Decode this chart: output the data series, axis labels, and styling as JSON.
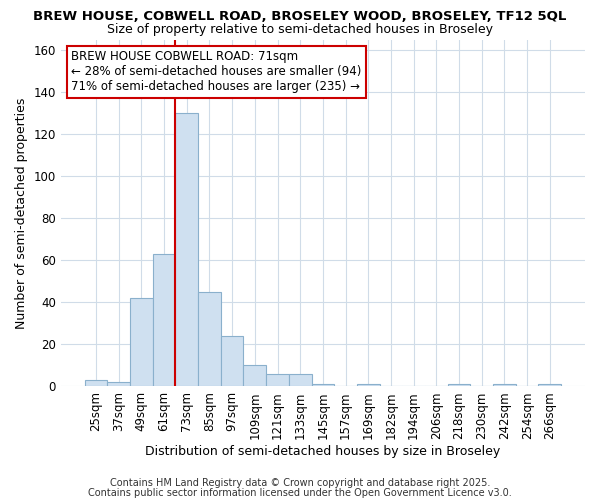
{
  "title_line1": "BREW HOUSE, COBWELL ROAD, BROSELEY WOOD, BROSELEY, TF12 5QL",
  "title_line2": "Size of property relative to semi-detached houses in Broseley",
  "xlabel": "Distribution of semi-detached houses by size in Broseley",
  "ylabel": "Number of semi-detached properties",
  "annotation_line1": "BREW HOUSE COBWELL ROAD: 71sqm",
  "annotation_line2": "← 28% of semi-detached houses are smaller (94)",
  "annotation_line3": "71% of semi-detached houses are larger (235) →",
  "footer_line1": "Contains HM Land Registry data © Crown copyright and database right 2025.",
  "footer_line2": "Contains public sector information licensed under the Open Government Licence v3.0.",
  "bar_labels": [
    "25sqm",
    "37sqm",
    "49sqm",
    "61sqm",
    "73sqm",
    "85sqm",
    "97sqm",
    "109sqm",
    "121sqm",
    "133sqm",
    "145sqm",
    "157sqm",
    "169sqm",
    "182sqm",
    "194sqm",
    "206sqm",
    "218sqm",
    "230sqm",
    "242sqm",
    "254sqm",
    "266sqm"
  ],
  "bar_values": [
    3,
    2,
    42,
    63,
    130,
    45,
    24,
    10,
    6,
    6,
    1,
    0,
    1,
    0,
    0,
    0,
    1,
    0,
    1,
    0,
    1
  ],
  "bar_color": "#cfe0f0",
  "bar_edge_color": "#8ab0cc",
  "property_line_index": 4,
  "property_line_color": "#cc0000",
  "ylim": [
    0,
    165
  ],
  "yticks": [
    0,
    20,
    40,
    60,
    80,
    100,
    120,
    140,
    160
  ],
  "background_color": "#ffffff",
  "plot_background_color": "#ffffff",
  "grid_color": "#d0dce8",
  "annotation_box_facecolor": "#ffffff",
  "annotation_box_edgecolor": "#cc0000",
  "title_fontsize": 9.5,
  "subtitle_fontsize": 9,
  "axis_label_fontsize": 9,
  "tick_fontsize": 8.5,
  "annotation_fontsize": 8.5,
  "footer_fontsize": 7
}
